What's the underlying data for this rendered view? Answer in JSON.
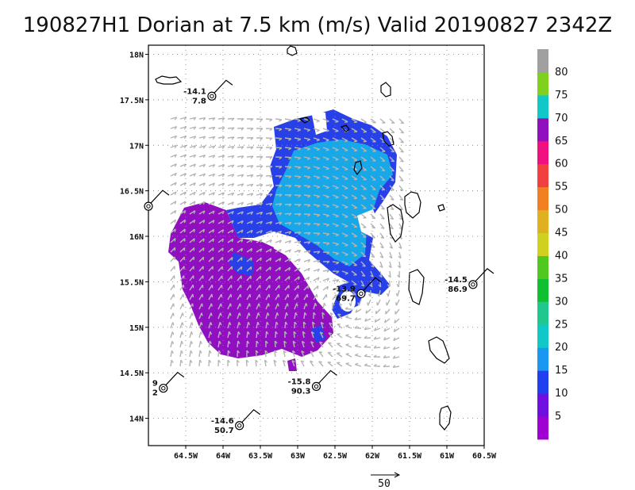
{
  "title": "190827H1 Dorian at 7.5 km (m/s) Valid 20190827 2342Z",
  "map": {
    "lon_range": [
      -65,
      -60.5
    ],
    "lat_range": [
      13.7,
      18.1
    ],
    "x_ticks": [
      {
        "lon": -64.5,
        "label": "64.5W"
      },
      {
        "lon": -64,
        "label": "64W"
      },
      {
        "lon": -63.5,
        "label": "63.5W"
      },
      {
        "lon": -63,
        "label": "63W"
      },
      {
        "lon": -62.5,
        "label": "62.5W"
      },
      {
        "lon": -62,
        "label": "62W"
      },
      {
        "lon": -61.5,
        "label": "61.5W"
      },
      {
        "lon": -61,
        "label": "61W"
      },
      {
        "lon": -60.5,
        "label": "60.5W"
      }
    ],
    "y_ticks": [
      {
        "lat": 14,
        "label": "14N"
      },
      {
        "lat": 14.5,
        "label": "14.5N"
      },
      {
        "lat": 15,
        "label": "15N"
      },
      {
        "lat": 15.5,
        "label": "15.5N"
      },
      {
        "lat": 16,
        "label": "16N"
      },
      {
        "lat": 16.5,
        "label": "16.5N"
      },
      {
        "lat": 17,
        "label": "17N"
      },
      {
        "lat": 17.5,
        "label": "17.5N"
      },
      {
        "lat": 18,
        "label": "18N"
      }
    ],
    "grid": "dotted"
  },
  "colorbar": {
    "labels": [
      "5",
      "10",
      "15",
      "20",
      "25",
      "30",
      "35",
      "40",
      "45",
      "50",
      "55",
      "60",
      "65",
      "70",
      "75",
      "80"
    ],
    "colors": [
      "#a000d2",
      "#7010e0",
      "#2040f0",
      "#1898f0",
      "#10c8c8",
      "#20c890",
      "#10c030",
      "#50c820",
      "#d0d020",
      "#e0b020",
      "#f08020",
      "#f04040",
      "#f01080",
      "#9010c0",
      "#10c8c8",
      "#80d020",
      "#a0a0a0"
    ]
  },
  "scale_arrow": {
    "label": "50"
  },
  "stations": [
    {
      "lon": -64.15,
      "lat": 17.54,
      "t": "-14.1",
      "p": "7.8"
    },
    {
      "lon": -65.0,
      "lat": 16.33,
      "t": "",
      "p": ""
    },
    {
      "lon": -62.15,
      "lat": 15.37,
      "t": "-13.9",
      "p": "69.7"
    },
    {
      "lon": -60.65,
      "lat": 15.47,
      "t": "-14.5",
      "p": "86.9"
    },
    {
      "lon": -64.8,
      "lat": 14.33,
      "t": "9",
      "p": "2"
    },
    {
      "lon": -62.75,
      "lat": 14.35,
      "t": "-15.8",
      "p": "90.3"
    },
    {
      "lon": -63.78,
      "lat": 13.92,
      "t": "-14.6",
      "p": "50.7"
    }
  ]
}
